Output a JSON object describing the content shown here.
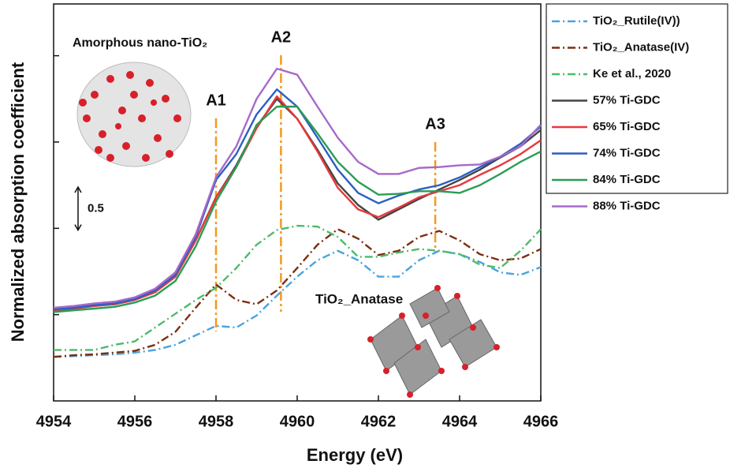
{
  "chart_data": {
    "type": "line",
    "x_label": "Energy (eV)",
    "y_label": "Normalized  absorption coefficient",
    "x": [
      4954,
      4954.5,
      4955,
      4955.5,
      4956,
      4956.5,
      4957,
      4957.5,
      4958,
      4958.5,
      4959,
      4959.5,
      4960,
      4960.5,
      4961,
      4961.5,
      4962,
      4962.5,
      4963,
      4963.5,
      4964,
      4964.5,
      4965,
      4965.5,
      4966
    ],
    "xlim": [
      4954,
      4966
    ],
    "xticks": [
      4954,
      4956,
      4958,
      4960,
      4962,
      4964,
      4966
    ],
    "ylim": [
      0,
      4.6
    ],
    "yticks": [
      1,
      2,
      3,
      4
    ],
    "legend": "outside right",
    "series": [
      {
        "name": "TiO₂_Rutile(IV))",
        "color": "#4aa3df",
        "dash": "dash-dot",
        "values": [
          0.51,
          0.52,
          0.53,
          0.54,
          0.56,
          0.59,
          0.65,
          0.76,
          0.87,
          0.85,
          0.99,
          1.22,
          1.44,
          1.63,
          1.74,
          1.63,
          1.44,
          1.44,
          1.63,
          1.74,
          1.7,
          1.61,
          1.49,
          1.46,
          1.55
        ]
      },
      {
        "name": "TiO₂_Anatase(IV)",
        "color": "#7b2e10",
        "dash": "dash-dot",
        "values": [
          0.51,
          0.53,
          0.54,
          0.56,
          0.58,
          0.65,
          0.8,
          1.08,
          1.35,
          1.17,
          1.12,
          1.28,
          1.54,
          1.81,
          1.99,
          1.88,
          1.69,
          1.74,
          1.9,
          1.97,
          1.86,
          1.7,
          1.63,
          1.65,
          1.76
        ]
      },
      {
        "name": "Ke et al., 2020",
        "color": "#4dbb6a",
        "dash": "dash-dot",
        "values": [
          0.59,
          0.59,
          0.59,
          0.65,
          0.69,
          0.85,
          1.01,
          1.17,
          1.31,
          1.54,
          1.81,
          1.98,
          2.03,
          2.02,
          1.9,
          1.67,
          1.67,
          1.72,
          1.76,
          1.74,
          1.7,
          1.58,
          1.54,
          1.74,
          1.99
        ]
      },
      {
        "name": "57% Ti-GDC",
        "color": "#444444",
        "dash": "solid",
        "values": [
          1.05,
          1.07,
          1.1,
          1.12,
          1.17,
          1.26,
          1.44,
          1.86,
          2.36,
          2.73,
          3.18,
          3.5,
          3.27,
          2.91,
          2.52,
          2.27,
          2.1,
          2.22,
          2.34,
          2.45,
          2.56,
          2.68,
          2.82,
          2.95,
          3.14
        ]
      },
      {
        "name": "65% Ti-GDC",
        "color": "#e8383d",
        "dash": "solid",
        "values": [
          1.05,
          1.07,
          1.1,
          1.12,
          1.17,
          1.26,
          1.44,
          1.86,
          2.36,
          2.71,
          3.16,
          3.53,
          3.27,
          2.89,
          2.47,
          2.22,
          2.13,
          2.24,
          2.36,
          2.43,
          2.5,
          2.62,
          2.73,
          2.86,
          3.02
        ]
      },
      {
        "name": "74% Ti-GDC",
        "color": "#2c5fc4",
        "dash": "solid",
        "values": [
          1.06,
          1.08,
          1.11,
          1.13,
          1.18,
          1.28,
          1.46,
          1.9,
          2.56,
          2.86,
          3.32,
          3.61,
          3.41,
          3.05,
          2.68,
          2.41,
          2.29,
          2.38,
          2.45,
          2.5,
          2.59,
          2.71,
          2.83,
          2.98,
          3.18
        ]
      },
      {
        "name": "84% Ti-GDC",
        "color": "#2a9d55",
        "dash": "solid",
        "values": [
          1.03,
          1.05,
          1.07,
          1.09,
          1.14,
          1.22,
          1.39,
          1.79,
          2.31,
          2.71,
          3.2,
          3.41,
          3.41,
          3.1,
          2.77,
          2.54,
          2.39,
          2.4,
          2.43,
          2.43,
          2.41,
          2.5,
          2.63,
          2.77,
          2.89
        ]
      },
      {
        "name": "88% Ti-GDC",
        "color": "#a769c9",
        "dash": "solid",
        "values": [
          1.08,
          1.1,
          1.13,
          1.15,
          1.2,
          1.3,
          1.49,
          1.93,
          2.59,
          2.95,
          3.5,
          3.85,
          3.78,
          3.41,
          3.05,
          2.77,
          2.63,
          2.63,
          2.7,
          2.71,
          2.73,
          2.74,
          2.83,
          2.95,
          3.2
        ]
      }
    ],
    "markers": [
      {
        "label": "A1",
        "x": 4958,
        "color": "#f39a1e"
      },
      {
        "label": "A2",
        "x": 4959.6,
        "color": "#f39a1e"
      },
      {
        "label": "A3",
        "x": 4963.4,
        "color": "#f39a1e"
      }
    ],
    "scale_bar": 0.5,
    "annotations": [
      "Amorphous nano-TiO₂",
      "TiO₂_Anatase"
    ]
  }
}
